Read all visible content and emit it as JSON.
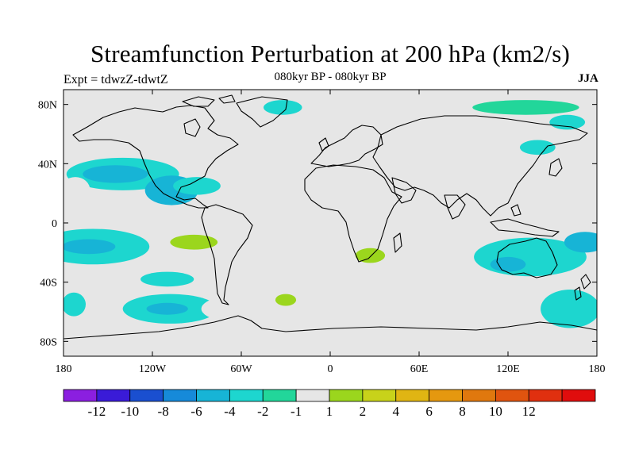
{
  "title": "Streamfunction Perturbation at 200 hPa (km2/s)",
  "subtitle": "080kyr BP - 080kyr BP",
  "left_label": "Expt = tdwzZ-tdwtZ",
  "right_label": "JJA",
  "x_ticks": [
    {
      "value": -180,
      "label": "180"
    },
    {
      "value": -120,
      "label": "120W"
    },
    {
      "value": -60,
      "label": "60W"
    },
    {
      "value": 0,
      "label": "0"
    },
    {
      "value": 60,
      "label": "60E"
    },
    {
      "value": 120,
      "label": "120E"
    },
    {
      "value": 180,
      "label": "180"
    }
  ],
  "y_ticks": [
    {
      "value": 80,
      "label": "80N"
    },
    {
      "value": 40,
      "label": "40N"
    },
    {
      "value": 0,
      "label": "0"
    },
    {
      "value": -40,
      "label": "40S"
    },
    {
      "value": -80,
      "label": "80S"
    }
  ],
  "colorbar": {
    "colors": [
      "#8b1fe0",
      "#3a1bd8",
      "#1a4fd0",
      "#168ad9",
      "#17b4d6",
      "#1dd6cf",
      "#22d69a",
      "#e6e6e6",
      "#9bd61d",
      "#c8d21a",
      "#e0b513",
      "#e5980f",
      "#e0780e",
      "#e0540f",
      "#e0300f",
      "#e00d0d"
    ],
    "labels": [
      "-12",
      "-10",
      "-8",
      "-6",
      "-4",
      "-2",
      "-1",
      "1",
      "2",
      "4",
      "6",
      "8",
      "10",
      "12"
    ]
  },
  "colors": {
    "background_field": "#e6e6e6",
    "coast": "#000000"
  },
  "chart_data": {
    "type": "heatmap",
    "title": "Streamfunction Perturbation at 200 hPa (km2/s)",
    "subtitle": "080kyr BP - 080kyr BP",
    "xlim": [
      -180,
      180
    ],
    "ylim": [
      -90,
      90
    ],
    "levels": [
      -12,
      -10,
      -8,
      -6,
      -4,
      -2,
      -1,
      1,
      2,
      4,
      6,
      8,
      10,
      12
    ],
    "regions": [
      {
        "lon": -140,
        "lat": 33,
        "rlon": 38,
        "rlat": 11,
        "level": -2
      },
      {
        "lon": -145,
        "lat": 33,
        "rlon": 22,
        "rlat": 6,
        "level": -4
      },
      {
        "lon": -107,
        "lat": 22,
        "rlon": 18,
        "rlat": 10,
        "level": -4
      },
      {
        "lon": -90,
        "lat": 25,
        "rlon": 16,
        "rlat": 6,
        "level": -2
      },
      {
        "lon": -172,
        "lat": 22,
        "rlon": 10,
        "rlat": 9,
        "level": 1
      },
      {
        "lon": -160,
        "lat": -16,
        "rlon": 38,
        "rlat": 12,
        "level": -2
      },
      {
        "lon": -163,
        "lat": -16,
        "rlon": 18,
        "rlat": 5,
        "level": -4
      },
      {
        "lon": -110,
        "lat": -38,
        "rlon": 18,
        "rlat": 5,
        "level": -2
      },
      {
        "lon": -80,
        "lat": -15,
        "rlon": 30,
        "rlat": 14,
        "level": 1
      },
      {
        "lon": -92,
        "lat": -13,
        "rlon": 16,
        "rlat": 5,
        "level": 2
      },
      {
        "lon": -108,
        "lat": -58,
        "rlon": 32,
        "rlat": 10,
        "level": -2
      },
      {
        "lon": -110,
        "lat": -58,
        "rlon": 14,
        "rlat": 4,
        "level": -4
      },
      {
        "lon": -35,
        "lat": -58,
        "rlon": 52,
        "rlat": 13,
        "level": 1
      },
      {
        "lon": -30,
        "lat": -52,
        "rlon": 7,
        "rlat": 4,
        "level": 2
      },
      {
        "lon": -32,
        "lat": 78,
        "rlon": 13,
        "rlat": 5,
        "level": -2
      },
      {
        "lon": 14,
        "lat": 58,
        "rlon": 22,
        "rlat": 11,
        "level": 1
      },
      {
        "lon": 35,
        "lat": -18,
        "rlon": 24,
        "rlat": 11,
        "level": 1
      },
      {
        "lon": 27,
        "lat": -22,
        "rlon": 10,
        "rlat": 5,
        "level": 2
      },
      {
        "lon": 132,
        "lat": 78,
        "rlon": 36,
        "rlat": 5,
        "level": -1
      },
      {
        "lon": 160,
        "lat": 68,
        "rlon": 12,
        "rlat": 5,
        "level": -2
      },
      {
        "lon": 120,
        "lat": 33,
        "rlon": 58,
        "rlat": 9,
        "level": 1
      },
      {
        "lon": 140,
        "lat": 51,
        "rlon": 12,
        "rlat": 5,
        "level": -2
      },
      {
        "lon": 135,
        "lat": -23,
        "rlon": 38,
        "rlat": 13,
        "level": -2
      },
      {
        "lon": 120,
        "lat": -28,
        "rlon": 12,
        "rlat": 5,
        "level": -4
      },
      {
        "lon": 172,
        "lat": -13,
        "rlon": 14,
        "rlat": 7,
        "level": -4
      },
      {
        "lon": 162,
        "lat": -58,
        "rlon": 20,
        "rlat": 13,
        "level": -2
      },
      {
        "lon": -173,
        "lat": -55,
        "rlon": 8,
        "rlat": 8,
        "level": -2
      }
    ]
  }
}
